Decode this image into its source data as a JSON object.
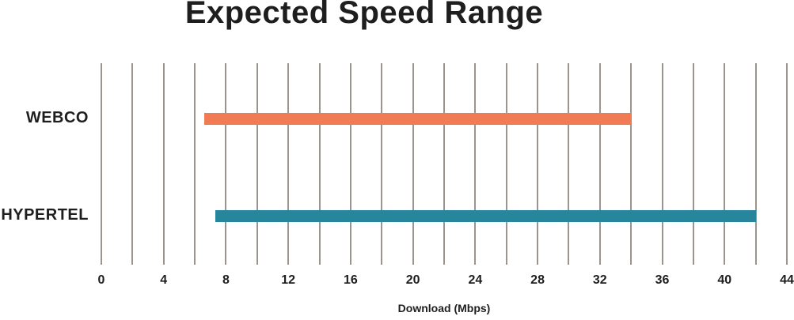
{
  "chart_data": {
    "type": "bar",
    "subtype": "horizontal-range",
    "title": "Expected Speed Range",
    "xlabel": "Download (Mbps)",
    "categories": [
      "WEBCO",
      "HYPERTEL"
    ],
    "series": [
      {
        "name": "WEBCO",
        "range_min": 6.6,
        "range_max": 34,
        "color": "#F07B54"
      },
      {
        "name": "HYPERTEL",
        "range_min": 7.3,
        "range_max": 42,
        "color": "#27869B"
      }
    ],
    "xlim": [
      0,
      44
    ],
    "xticks": [
      0,
      4,
      8,
      12,
      16,
      20,
      24,
      28,
      32,
      36,
      40,
      44
    ],
    "grid_step": 2,
    "grid": true,
    "legend": false,
    "gridline_color": "#9B9590",
    "text_color": "#1E1E1E",
    "background": "#FFFFFF"
  }
}
